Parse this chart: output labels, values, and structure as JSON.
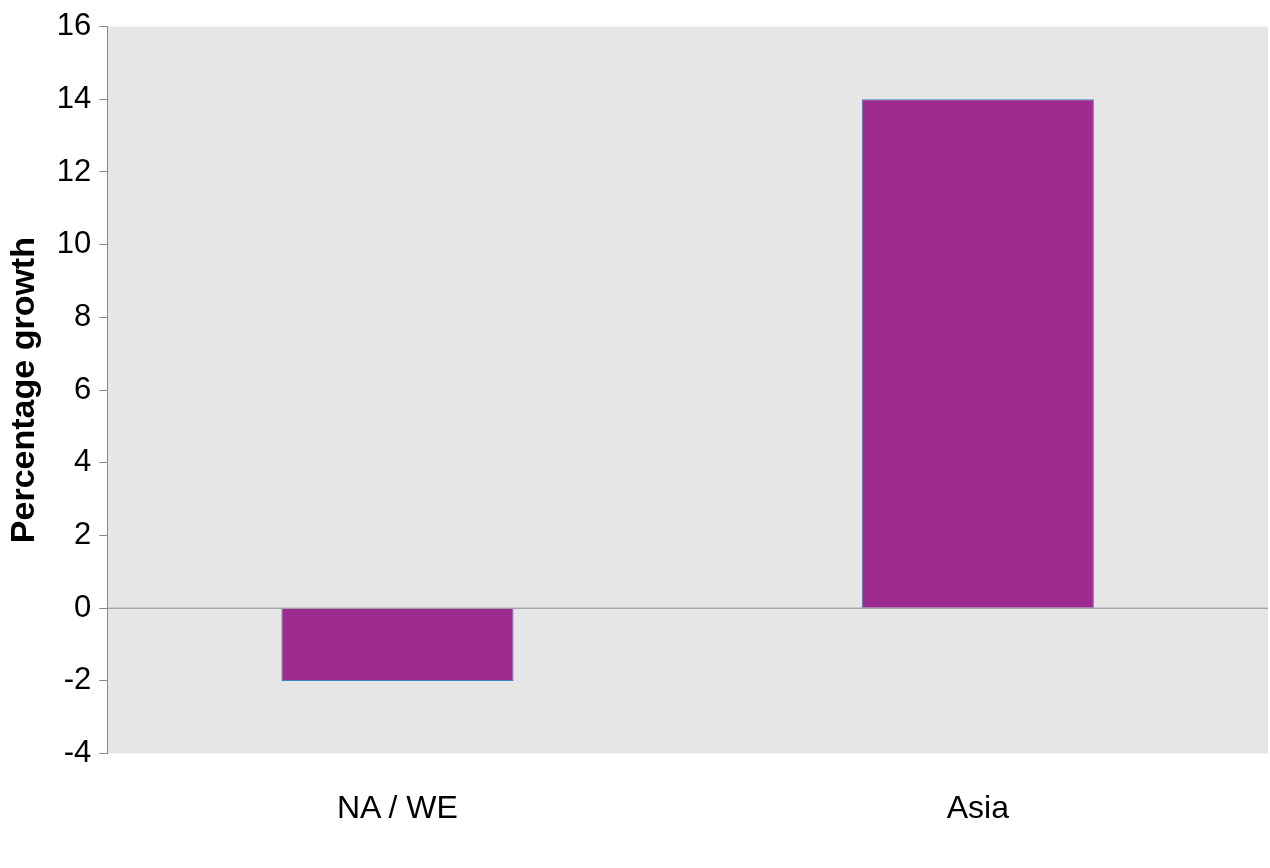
{
  "chart_data": {
    "type": "bar",
    "ylabel": "Percentage growth",
    "categories": [
      "NA / WE",
      "Asia"
    ],
    "values": [
      -2,
      14
    ],
    "color": "#9c2a8f",
    "ylim": [
      -4,
      16
    ],
    "yticks": [
      -4,
      -2,
      0,
      2,
      4,
      6,
      8,
      10,
      12,
      14,
      16
    ],
    "grid": false,
    "legend": false,
    "ref_lines": [
      {
        "axis": "y",
        "value": 0,
        "color": "#888888"
      }
    ]
  }
}
